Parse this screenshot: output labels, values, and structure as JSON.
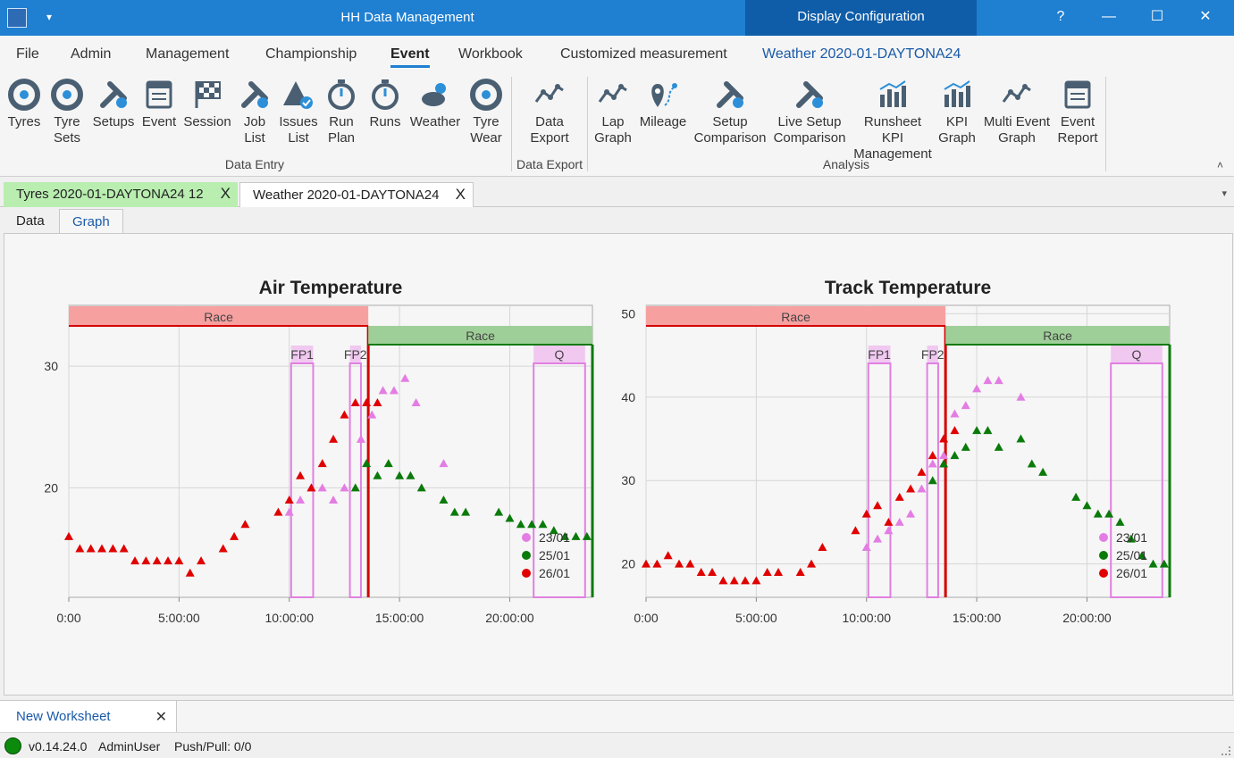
{
  "titlebar": {
    "title": "HH Data Management",
    "context_tab": "Display Configuration",
    "help": "?",
    "minimize": "—",
    "maximize": "☐",
    "close": "✕",
    "qa_dropdown": "▾"
  },
  "menu": {
    "items": [
      "File",
      "Admin",
      "Management",
      "Championship",
      "Event",
      "Workbook",
      "Customized measurement",
      "Weather 2020-01-DAYTONA24"
    ],
    "active": "Event"
  },
  "ribbon": {
    "buttons": [
      {
        "l1": "Tyres",
        "l2": "",
        "icon": "tyre-icon"
      },
      {
        "l1": "Tyre",
        "l2": "Sets",
        "icon": "tyre-sets-icon"
      },
      {
        "l1": "Setups",
        "l2": "",
        "icon": "tools-icon"
      },
      {
        "l1": "Event",
        "l2": "",
        "icon": "calendar-icon"
      },
      {
        "l1": "Session",
        "l2": "",
        "icon": "checkered-flag-icon"
      },
      {
        "l1": "Job",
        "l2": "List",
        "icon": "wrench-check-icon"
      },
      {
        "l1": "Issues",
        "l2": "List",
        "icon": "warning-check-icon"
      },
      {
        "l1": "Run",
        "l2": "Plan",
        "icon": "run-plan-icon"
      },
      {
        "l1": "Runs",
        "l2": "",
        "icon": "stopwatch-icon"
      },
      {
        "l1": "Weather",
        "l2": "",
        "icon": "weather-icon"
      },
      {
        "l1": "Tyre",
        "l2": "Wear",
        "icon": "tyre-wear-icon"
      },
      {
        "l1": "Data",
        "l2": "Export",
        "icon": "data-export-icon"
      },
      {
        "l1": "Lap",
        "l2": "Graph",
        "icon": "lap-graph-icon"
      },
      {
        "l1": "Mileage",
        "l2": "",
        "icon": "mileage-icon"
      },
      {
        "l1": "Setup",
        "l2": "Comparison",
        "icon": "setup-comparison-icon"
      },
      {
        "l1": "Live Setup",
        "l2": "Comparison",
        "icon": "live-setup-comparison-icon"
      },
      {
        "l1": "Runsheet KPI",
        "l2": "Management",
        "icon": "kpi-management-icon"
      },
      {
        "l1": "KPI",
        "l2": "Graph",
        "icon": "kpi-graph-icon"
      },
      {
        "l1": "Multi Event",
        "l2": "Graph",
        "icon": "multi-event-graph-icon"
      },
      {
        "l1": "Event",
        "l2": "Report",
        "icon": "event-report-icon"
      }
    ],
    "groups": [
      "Data Entry",
      "Data Export",
      "Analysis"
    ],
    "collapse": "˄"
  },
  "doc_tabs": [
    {
      "label": "Tyres 2020-01-DAYTONA24 12",
      "close": "X"
    },
    {
      "label": "Weather 2020-01-DAYTONA24",
      "close": "X"
    }
  ],
  "doc_tabs_dropdown": "▾",
  "sub_tabs": [
    "Data",
    "Graph"
  ],
  "chart_data": [
    {
      "type": "scatter",
      "title": "Air Temperature",
      "xlabel": "",
      "ylabel": "",
      "xlim": [
        "0:00",
        "23:45:00"
      ],
      "ylim": [
        11,
        35
      ],
      "x_ticks": [
        "0:00",
        "5:00:00",
        "10:00:00",
        "15:00:00",
        "20:00:00"
      ],
      "y_ticks": [
        20,
        30
      ],
      "grid": true,
      "legend": "bottom-right",
      "sessions": [
        {
          "name": "Race",
          "start": "0:00",
          "end": "13:35:00",
          "color": "#f7a0a0",
          "line": "#d40000"
        },
        {
          "name": "Race",
          "start": "13:35:00",
          "end": "23:45:00",
          "color": "#9fcf98",
          "line": "#0a7a0a"
        },
        {
          "name": "FP1",
          "start": "10:05:00",
          "end": "11:05:00",
          "color": "#f0c8f0",
          "line": "#e080e0"
        },
        {
          "name": "FP2",
          "start": "12:45:00",
          "end": "13:15:00",
          "color": "#f0c8f0",
          "line": "#e080e0"
        },
        {
          "name": "Q",
          "start": "21:05:00",
          "end": "23:25:00",
          "color": "#f0c8f0",
          "line": "#e080e0"
        }
      ],
      "series": [
        {
          "name": "23/01",
          "color": "#e37de3",
          "x": [
            "10:00:00",
            "10:30:00",
            "11:00:00",
            "11:30:00",
            "12:00:00",
            "12:30:00",
            "13:15:00",
            "13:45:00",
            "14:15:00",
            "14:45:00",
            "15:15:00",
            "15:45:00",
            "17:00:00"
          ],
          "y": [
            18,
            19,
            20,
            20,
            19,
            20,
            24,
            26,
            28,
            28,
            29,
            27,
            22
          ]
        },
        {
          "name": "25/01",
          "color": "#0a7a0a",
          "x": [
            "13:00:00",
            "13:30:00",
            "14:00:00",
            "14:30:00",
            "15:00:00",
            "15:30:00",
            "16:00:00",
            "17:00:00",
            "17:30:00",
            "18:00:00",
            "19:30:00",
            "20:00:00",
            "20:30:00",
            "21:00:00",
            "21:30:00",
            "22:00:00",
            "22:30:00",
            "23:00:00",
            "23:30:00"
          ],
          "y": [
            20,
            22,
            21,
            22,
            21,
            21,
            20,
            19,
            18,
            18,
            18,
            17.5,
            17,
            17,
            17,
            16.5,
            16,
            16,
            16
          ]
        },
        {
          "name": "26/01",
          "color": "#e00000",
          "x": [
            "0:00",
            "0:30:00",
            "1:00:00",
            "1:30:00",
            "2:00:00",
            "2:30:00",
            "3:00:00",
            "3:30:00",
            "4:00:00",
            "4:30:00",
            "5:00:00",
            "5:30:00",
            "6:00:00",
            "7:00:00",
            "7:30:00",
            "8:00:00",
            "9:30:00",
            "10:00:00",
            "10:30:00",
            "11:00:00",
            "11:30:00",
            "12:00:00",
            "12:30:00",
            "13:00:00",
            "13:30:00",
            "14:00:00"
          ],
          "y": [
            16,
            15,
            15,
            15,
            15,
            15,
            14,
            14,
            14,
            14,
            14,
            13,
            14,
            15,
            16,
            17,
            18,
            19,
            21,
            20,
            22,
            24,
            26,
            27,
            27,
            27
          ]
        }
      ]
    },
    {
      "type": "scatter",
      "title": "Track Temperature",
      "xlabel": "",
      "ylabel": "",
      "xlim": [
        "0:00",
        "23:45:00"
      ],
      "ylim": [
        16,
        51
      ],
      "x_ticks": [
        "0:00",
        "5:00:00",
        "10:00:00",
        "15:00:00",
        "20:00:00"
      ],
      "y_ticks": [
        20,
        30,
        40,
        50
      ],
      "grid": true,
      "legend": "bottom-right",
      "sessions": [
        {
          "name": "Race",
          "start": "0:00",
          "end": "13:35:00",
          "color": "#f7a0a0",
          "line": "#d40000"
        },
        {
          "name": "Race",
          "start": "13:35:00",
          "end": "23:45:00",
          "color": "#9fcf98",
          "line": "#0a7a0a"
        },
        {
          "name": "FP1",
          "start": "10:05:00",
          "end": "11:05:00",
          "color": "#f0c8f0",
          "line": "#e080e0"
        },
        {
          "name": "FP2",
          "start": "12:45:00",
          "end": "13:15:00",
          "color": "#f0c8f0",
          "line": "#e080e0"
        },
        {
          "name": "Q",
          "start": "21:05:00",
          "end": "23:25:00",
          "color": "#f0c8f0",
          "line": "#e080e0"
        }
      ],
      "series": [
        {
          "name": "23/01",
          "color": "#e37de3",
          "x": [
            "10:00:00",
            "10:30:00",
            "11:00:00",
            "11:30:00",
            "12:00:00",
            "12:30:00",
            "13:00:00",
            "13:30:00",
            "14:00:00",
            "14:30:00",
            "15:00:00",
            "15:30:00",
            "16:00:00",
            "17:00:00"
          ],
          "y": [
            22,
            23,
            24,
            25,
            26,
            29,
            32,
            33,
            38,
            39,
            41,
            42,
            42,
            40
          ]
        },
        {
          "name": "25/01",
          "color": "#0a7a0a",
          "x": [
            "13:00:00",
            "13:30:00",
            "14:00:00",
            "14:30:00",
            "15:00:00",
            "15:30:00",
            "16:00:00",
            "17:00:00",
            "17:30:00",
            "18:00:00",
            "19:30:00",
            "20:00:00",
            "20:30:00",
            "21:00:00",
            "21:30:00",
            "22:00:00",
            "22:30:00",
            "23:00:00",
            "23:30:00"
          ],
          "y": [
            30,
            32,
            33,
            34,
            36,
            36,
            34,
            35,
            32,
            31,
            28,
            27,
            26,
            26,
            25,
            23,
            21,
            20,
            20
          ]
        },
        {
          "name": "26/01",
          "color": "#e00000",
          "x": [
            "0:00",
            "0:30:00",
            "1:00:00",
            "1:30:00",
            "2:00:00",
            "2:30:00",
            "3:00:00",
            "3:30:00",
            "4:00:00",
            "4:30:00",
            "5:00:00",
            "5:30:00",
            "6:00:00",
            "7:00:00",
            "7:30:00",
            "8:00:00",
            "9:30:00",
            "10:00:00",
            "10:30:00",
            "11:00:00",
            "11:30:00",
            "12:00:00",
            "12:30:00",
            "13:00:00",
            "13:30:00",
            "14:00:00"
          ],
          "y": [
            20,
            20,
            21,
            20,
            20,
            19,
            19,
            18,
            18,
            18,
            18,
            19,
            19,
            19,
            20,
            22,
            24,
            26,
            27,
            25,
            28,
            29,
            31,
            33,
            35,
            36
          ]
        }
      ]
    }
  ],
  "worksheet_tabs": [
    {
      "label": "New Worksheet",
      "close": "✕"
    }
  ],
  "status": {
    "version": "v0.14.24.0",
    "user": "AdminUser",
    "sync": "Push/Pull: 0/0",
    "indicator_color": "#0c8a0c"
  }
}
